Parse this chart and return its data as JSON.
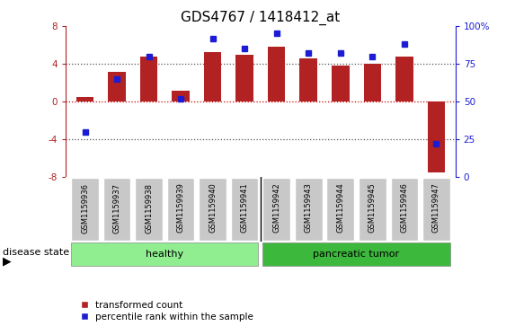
{
  "title": "GDS4767 / 1418412_at",
  "samples": [
    "GSM1159936",
    "GSM1159937",
    "GSM1159938",
    "GSM1159939",
    "GSM1159940",
    "GSM1159941",
    "GSM1159942",
    "GSM1159943",
    "GSM1159944",
    "GSM1159945",
    "GSM1159946",
    "GSM1159947"
  ],
  "transformed_count": [
    0.5,
    3.2,
    4.8,
    1.2,
    5.2,
    5.0,
    5.8,
    4.6,
    3.8,
    4.0,
    4.8,
    -7.5
  ],
  "percentile_rank": [
    30,
    65,
    80,
    52,
    92,
    85,
    95,
    82,
    82,
    80,
    88,
    22
  ],
  "healthy_count": 6,
  "tumor_count": 6,
  "ylim_left": [
    -8,
    8
  ],
  "ylim_right": [
    0,
    100
  ],
  "yticks_left": [
    -8,
    -4,
    0,
    4,
    8
  ],
  "yticks_right": [
    0,
    25,
    50,
    75,
    100
  ],
  "bar_color": "#B22222",
  "dot_color": "#1C1CD4",
  "healthy_color": "#90EE90",
  "tumor_color": "#3CB83C",
  "label_bg_color": "#C8C8C8",
  "disease_state_label": "disease state",
  "healthy_label": "healthy",
  "tumor_label": "pancreatic tumor",
  "legend_bar_label": "transformed count",
  "legend_dot_label": "percentile rank within the sample",
  "zero_line_color": "#CC0000",
  "dotted_line_color": "#555555",
  "title_fontsize": 11,
  "tick_fontsize": 7.5,
  "label_fontsize": 6,
  "disease_fontsize": 8,
  "legend_fontsize": 7.5
}
